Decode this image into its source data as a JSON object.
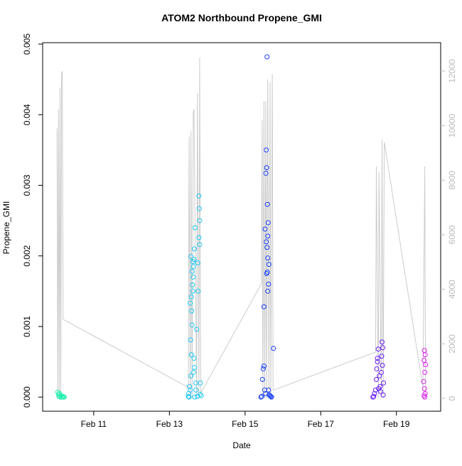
{
  "chart_data": {
    "type": "scatter",
    "title": "ATOM2 Northbound Propene_GMI",
    "xlabel": "Date",
    "ylabel": "Propene_GMI",
    "xlim": [
      9.65,
      20.17
    ],
    "ylim": [
      -0.0002,
      0.00502
    ],
    "y2lim": [
      -470,
      13043
    ],
    "xticks": [
      {
        "value": 11,
        "label": "Feb 11"
      },
      {
        "value": 13,
        "label": "Feb 13"
      },
      {
        "value": 15,
        "label": "Feb 15"
      },
      {
        "value": 17,
        "label": "Feb 17"
      },
      {
        "value": 19,
        "label": "Feb 19"
      }
    ],
    "yticks": [
      {
        "value": 0,
        "label": "0.000"
      },
      {
        "value": 0.001,
        "label": "0.001"
      },
      {
        "value": 0.002,
        "label": "0.002"
      },
      {
        "value": 0.003,
        "label": "0.003"
      },
      {
        "value": 0.004,
        "label": "0.004"
      },
      {
        "value": 0.005,
        "label": "0.005"
      }
    ],
    "y2ticks": [
      0,
      2000,
      4000,
      6000,
      8000,
      10000,
      12000
    ],
    "series": [
      {
        "color": "#cccccc",
        "axis": "y2",
        "x": [
          10.03,
          10.05,
          10.07,
          10.09,
          10.11,
          10.13,
          10.15,
          10.17,
          10.19,
          13.5,
          13.52,
          13.55,
          13.57,
          13.6,
          13.63,
          13.65,
          13.72,
          13.74,
          13.78,
          13.8,
          13.83,
          15.43,
          15.45,
          15.47,
          15.5,
          15.52,
          15.55,
          15.57,
          15.6,
          15.63,
          15.66,
          15.68,
          15.72,
          15.74,
          18.45,
          18.47,
          18.52,
          18.54,
          18.6,
          18.62,
          18.65,
          18.68,
          19.7,
          19.75,
          19.77
        ],
        "values": [
          9900,
          0,
          10600,
          0,
          11400,
          0,
          11900,
          12000,
          2900,
          400,
          9600,
          0,
          9800,
          0,
          10500,
          10600,
          0,
          11200,
          0,
          12500,
          200,
          4200,
          10200,
          0,
          10900,
          0,
          10900,
          0,
          11700,
          0,
          11600,
          0,
          11900,
          300,
          1700,
          8500,
          0,
          8300,
          0,
          9500,
          0,
          9400,
          400,
          8500,
          0
        ]
      },
      {
        "color": "#20f0b0",
        "x": [
          10.05,
          10.07,
          10.08,
          10.1,
          10.12,
          10.14,
          10.16,
          10.18,
          10.2,
          10.22
        ],
        "values": [
          7e-05,
          4e-05,
          1e-05,
          5e-05,
          0,
          2e-05,
          0,
          1e-05,
          0,
          0
        ]
      },
      {
        "color": "#20c8f0",
        "x": [
          13.5,
          13.52,
          13.55,
          13.57,
          13.58,
          13.6,
          13.62,
          13.63,
          13.65,
          13.66,
          13.68,
          13.7,
          13.72,
          13.75,
          13.78,
          13.8,
          13.82,
          13.55,
          13.58,
          13.6,
          13.62,
          13.64,
          13.67,
          13.78,
          13.8,
          13.53,
          13.56,
          13.59,
          13.61,
          13.63,
          13.65,
          13.7,
          13.76,
          13.79,
          13.81,
          13.84,
          13.51,
          13.57,
          13.66,
          13.74
        ],
        "values": [
          1e-05,
          0,
          0.0001,
          0.0003,
          0.0006,
          0.00102,
          0.0015,
          0.0017,
          0.00195,
          0.0021,
          0.0024,
          0.0002,
          0.00096,
          0.0019,
          0.00285,
          0.0025,
          0.0002,
          0.00133,
          0.00142,
          0.00178,
          0.00192,
          0.00035,
          0,
          0.00226,
          0.00216,
          0.00015,
          0.00081,
          0.00122,
          0.00159,
          0.00185,
          0.00055,
          0.0001,
          0.0015,
          0.00267,
          4e-05,
          2e-05,
          5e-05,
          0.00199,
          0.00042,
          1e-05
        ]
      },
      {
        "color": "#1a40f8",
        "x": [
          15.42,
          15.44,
          15.46,
          15.48,
          15.5,
          15.52,
          15.54,
          15.56,
          15.58,
          15.6,
          15.62,
          15.64,
          15.66,
          15.68,
          15.7,
          15.75,
          15.55,
          15.57,
          15.59,
          15.61,
          15.53,
          15.56,
          15.58,
          15.6,
          15.63,
          15.57,
          15.59,
          15.62,
          15.6,
          15.5
        ],
        "values": [
          0,
          1e-05,
          0.00025,
          0.0004,
          0.00044,
          0.0001,
          5e-05,
          0.0035,
          0.00482,
          0.00228,
          0.0001,
          3e-05,
          2e-05,
          1e-05,
          0,
          0.00069,
          0.00317,
          0.00325,
          0.00273,
          0.00247,
          0.00238,
          0.0022,
          0.00212,
          0.00197,
          0.00188,
          0.00175,
          0.00177,
          0.0016,
          0.0015,
          0.00128
        ]
      },
      {
        "color": "#6a1ef8",
        "x": [
          18.38,
          18.4,
          18.42,
          18.45,
          18.47,
          18.5,
          18.52,
          18.55,
          18.57,
          18.6,
          18.62,
          18.64,
          18.66,
          18.48,
          18.5,
          18.53,
          18.58,
          18.61,
          18.63,
          18.65
        ],
        "values": [
          0,
          1e-05,
          5e-05,
          0.0001,
          0.00025,
          0.00055,
          0.00068,
          0.0003,
          0.00015,
          0.00035,
          0.00078,
          0.0007,
          0.0002,
          0.0004,
          0.0005,
          0.00012,
          8e-05,
          0.00058,
          0.00045,
          3e-05
        ]
      },
      {
        "color": "#e020f0",
        "x": [
          19.74,
          19.76,
          19.73,
          19.77,
          19.75,
          19.72,
          19.74,
          19.76,
          19.73,
          19.75
        ],
        "values": [
          0.00066,
          0.0006,
          0.00052,
          0.00046,
          0.00035,
          0.00022,
          0.00012,
          5e-05,
          2e-05,
          0
        ]
      }
    ]
  }
}
